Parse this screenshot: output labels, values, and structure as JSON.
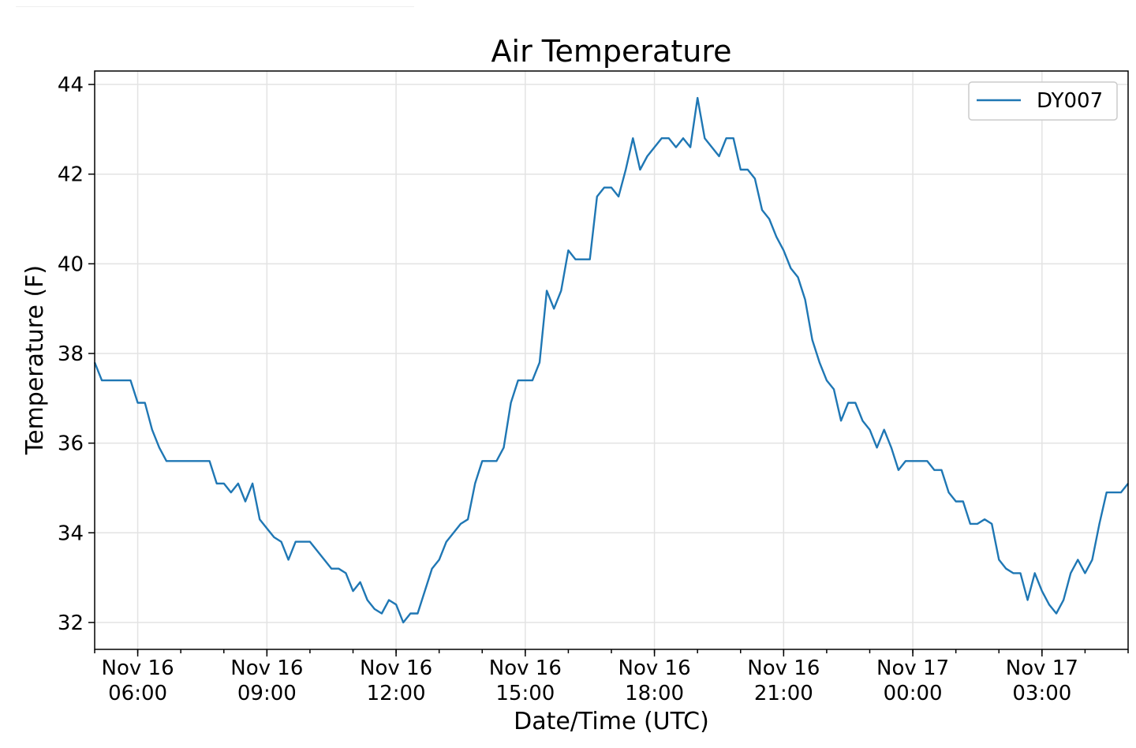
{
  "chart_data": {
    "type": "line",
    "title": "Air Temperature",
    "xlabel": "Date/Time (UTC)",
    "ylabel": "Temperature (F)",
    "xlim": [
      "2018-11-16T05:00",
      "2018-11-17T05:00"
    ],
    "ylim": [
      31.4,
      44.3
    ],
    "yticks": [
      32,
      34,
      36,
      38,
      40,
      42,
      44
    ],
    "xticks": [
      {
        "value": "2018-11-16T06:00",
        "line1": "Nov 16",
        "line2": "06:00"
      },
      {
        "value": "2018-11-16T09:00",
        "line1": "Nov 16",
        "line2": "09:00"
      },
      {
        "value": "2018-11-16T12:00",
        "line1": "Nov 16",
        "line2": "12:00"
      },
      {
        "value": "2018-11-16T15:00",
        "line1": "Nov 16",
        "line2": "15:00"
      },
      {
        "value": "2018-11-16T18:00",
        "line1": "Nov 16",
        "line2": "18:00"
      },
      {
        "value": "2018-11-16T21:00",
        "line1": "Nov 16",
        "line2": "21:00"
      },
      {
        "value": "2018-11-17T00:00",
        "line1": "Nov 17",
        "line2": "00:00"
      },
      {
        "value": "2018-11-17T03:00",
        "line1": "Nov 17",
        "line2": "03:00"
      }
    ],
    "grid": true,
    "legend": {
      "position": "top-right"
    },
    "series": [
      {
        "name": "DY007",
        "color": "#1f77b4",
        "x": [
          "2018-11-16T05:00",
          "2018-11-16T05:10",
          "2018-11-16T05:20",
          "2018-11-16T05:30",
          "2018-11-16T05:40",
          "2018-11-16T05:50",
          "2018-11-16T06:00",
          "2018-11-16T06:10",
          "2018-11-16T06:20",
          "2018-11-16T06:30",
          "2018-11-16T06:40",
          "2018-11-16T06:50",
          "2018-11-16T07:00",
          "2018-11-16T07:10",
          "2018-11-16T07:20",
          "2018-11-16T07:30",
          "2018-11-16T07:40",
          "2018-11-16T07:50",
          "2018-11-16T08:00",
          "2018-11-16T08:10",
          "2018-11-16T08:20",
          "2018-11-16T08:30",
          "2018-11-16T08:40",
          "2018-11-16T08:50",
          "2018-11-16T09:00",
          "2018-11-16T09:10",
          "2018-11-16T09:20",
          "2018-11-16T09:30",
          "2018-11-16T09:40",
          "2018-11-16T09:50",
          "2018-11-16T10:00",
          "2018-11-16T10:10",
          "2018-11-16T10:20",
          "2018-11-16T10:30",
          "2018-11-16T10:40",
          "2018-11-16T10:50",
          "2018-11-16T11:00",
          "2018-11-16T11:10",
          "2018-11-16T11:20",
          "2018-11-16T11:30",
          "2018-11-16T11:40",
          "2018-11-16T11:50",
          "2018-11-16T12:00",
          "2018-11-16T12:10",
          "2018-11-16T12:20",
          "2018-11-16T12:30",
          "2018-11-16T12:40",
          "2018-11-16T12:50",
          "2018-11-16T13:00",
          "2018-11-16T13:10",
          "2018-11-16T13:20",
          "2018-11-16T13:30",
          "2018-11-16T13:40",
          "2018-11-16T13:50",
          "2018-11-16T14:00",
          "2018-11-16T14:10",
          "2018-11-16T14:20",
          "2018-11-16T14:30",
          "2018-11-16T14:40",
          "2018-11-16T14:50",
          "2018-11-16T15:00",
          "2018-11-16T15:10",
          "2018-11-16T15:20",
          "2018-11-16T15:30",
          "2018-11-16T15:40",
          "2018-11-16T15:50",
          "2018-11-16T16:00",
          "2018-11-16T16:10",
          "2018-11-16T16:20",
          "2018-11-16T16:30",
          "2018-11-16T16:40",
          "2018-11-16T16:50",
          "2018-11-16T17:00",
          "2018-11-16T17:10",
          "2018-11-16T17:20",
          "2018-11-16T17:30",
          "2018-11-16T17:40",
          "2018-11-16T17:50",
          "2018-11-16T18:00",
          "2018-11-16T18:10",
          "2018-11-16T18:20",
          "2018-11-16T18:30",
          "2018-11-16T18:40",
          "2018-11-16T18:50",
          "2018-11-16T19:00",
          "2018-11-16T19:10",
          "2018-11-16T19:20",
          "2018-11-16T19:30",
          "2018-11-16T19:40",
          "2018-11-16T19:50",
          "2018-11-16T20:00",
          "2018-11-16T20:10",
          "2018-11-16T20:20",
          "2018-11-16T20:30",
          "2018-11-16T20:40",
          "2018-11-16T20:50",
          "2018-11-16T21:00",
          "2018-11-16T21:10",
          "2018-11-16T21:20",
          "2018-11-16T21:30",
          "2018-11-16T21:40",
          "2018-11-16T21:50",
          "2018-11-16T22:00",
          "2018-11-16T22:10",
          "2018-11-16T22:20",
          "2018-11-16T22:30",
          "2018-11-16T22:40",
          "2018-11-16T22:50",
          "2018-11-16T23:00",
          "2018-11-16T23:10",
          "2018-11-16T23:20",
          "2018-11-16T23:30",
          "2018-11-16T23:40",
          "2018-11-16T23:50",
          "2018-11-17T00:00",
          "2018-11-17T00:10",
          "2018-11-17T00:20",
          "2018-11-17T00:30",
          "2018-11-17T00:40",
          "2018-11-17T00:50",
          "2018-11-17T01:00",
          "2018-11-17T01:10",
          "2018-11-17T01:20",
          "2018-11-17T01:30",
          "2018-11-17T01:40",
          "2018-11-17T01:50",
          "2018-11-17T02:00",
          "2018-11-17T02:10",
          "2018-11-17T02:20",
          "2018-11-17T02:30",
          "2018-11-17T02:40",
          "2018-11-17T02:50",
          "2018-11-17T03:00",
          "2018-11-17T03:10",
          "2018-11-17T03:20",
          "2018-11-17T03:30",
          "2018-11-17T03:40",
          "2018-11-17T03:50",
          "2018-11-17T04:00",
          "2018-11-17T04:10",
          "2018-11-17T04:20",
          "2018-11-17T04:30",
          "2018-11-17T04:40",
          "2018-11-17T04:50",
          "2018-11-17T05:00"
        ],
        "values": [
          37.8,
          37.4,
          37.4,
          37.4,
          37.4,
          37.4,
          36.9,
          36.9,
          36.3,
          35.9,
          35.6,
          35.6,
          35.6,
          35.6,
          35.6,
          35.6,
          35.6,
          35.1,
          35.1,
          34.9,
          35.1,
          34.7,
          35.1,
          34.3,
          34.1,
          33.9,
          33.8,
          33.4,
          33.8,
          33.8,
          33.8,
          33.6,
          33.4,
          33.2,
          33.2,
          33.1,
          32.7,
          32.9,
          32.5,
          32.3,
          32.2,
          32.5,
          32.4,
          32.0,
          32.2,
          32.2,
          32.7,
          33.2,
          33.4,
          33.8,
          34.0,
          34.2,
          34.3,
          35.1,
          35.6,
          35.6,
          35.6,
          35.9,
          36.9,
          37.4,
          37.4,
          37.4,
          37.8,
          39.4,
          39.0,
          39.4,
          40.3,
          40.1,
          40.1,
          40.1,
          41.5,
          41.7,
          41.7,
          41.5,
          42.1,
          42.8,
          42.1,
          42.4,
          42.6,
          42.8,
          42.8,
          42.6,
          42.8,
          42.6,
          43.7,
          42.8,
          42.6,
          42.4,
          42.8,
          42.8,
          42.1,
          42.1,
          41.9,
          41.2,
          41.0,
          40.6,
          40.3,
          39.9,
          39.7,
          39.2,
          38.3,
          37.8,
          37.4,
          37.2,
          36.5,
          36.9,
          36.9,
          36.5,
          36.3,
          35.9,
          36.3,
          35.9,
          35.4,
          35.6,
          35.6,
          35.6,
          35.6,
          35.4,
          35.4,
          34.9,
          34.7,
          34.7,
          34.2,
          34.2,
          34.3,
          34.2,
          33.4,
          33.2,
          33.1,
          33.1,
          32.5,
          33.1,
          32.7,
          32.4,
          32.2,
          32.5,
          33.1,
          33.4,
          33.1,
          33.4,
          34.2,
          34.9,
          34.9,
          34.9,
          35.1
        ]
      }
    ]
  }
}
